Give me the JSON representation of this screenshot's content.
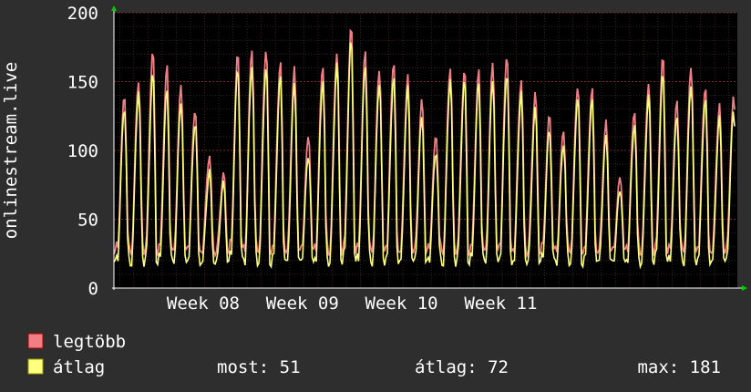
{
  "chart_data": {
    "type": "line",
    "ylabel": "onlinestream.live",
    "ylim": [
      0,
      200
    ],
    "yticks": [
      0,
      50,
      100,
      150,
      200
    ],
    "week_labels": [
      "Week 08",
      "Week 09",
      "Week 10",
      "Week 11"
    ],
    "grid": true,
    "days": 44,
    "series": [
      {
        "name": "legtöbb",
        "color": "#f07e85",
        "daily_peaks": [
          140,
          152,
          174,
          160,
          147,
          131,
          97,
          83,
          170,
          174,
          176,
          164,
          159,
          110,
          163,
          172,
          190,
          171,
          160,
          166,
          154,
          136,
          111,
          162,
          160,
          157,
          163,
          171,
          152,
          142,
          125,
          115,
          149,
          145,
          120,
          80,
          130,
          150,
          168,
          135,
          162,
          148,
          133,
          138
        ]
      },
      {
        "name": "átlag",
        "color": "#ffff80",
        "daily_peaks": [
          132,
          144,
          156,
          143,
          136,
          122,
          85,
          76,
          160,
          163,
          162,
          153,
          148,
          97,
          152,
          163,
          180,
          162,
          151,
          154,
          145,
          124,
          100,
          153,
          151,
          148,
          152,
          158,
          142,
          130,
          115,
          106,
          140,
          136,
          110,
          72,
          120,
          140,
          155,
          125,
          150,
          138,
          123,
          128
        ]
      }
    ]
  },
  "legend": {
    "max_label": "legtöbb",
    "avg_label": "átlag"
  },
  "stats": {
    "current": "most: 51",
    "average": "átlag: 72",
    "maximum": "max: 181"
  }
}
